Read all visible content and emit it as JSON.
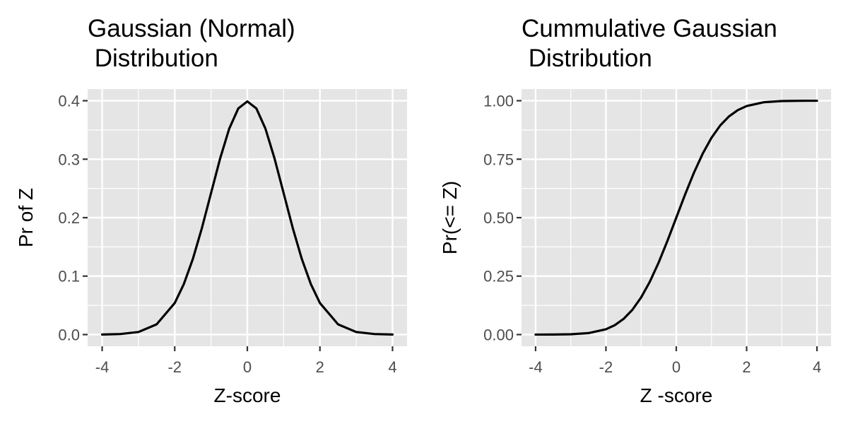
{
  "chart_data": [
    {
      "type": "line",
      "title_line1": "Gaussian (Normal)",
      "title_line2": " Distribution",
      "xlabel": "Z-score",
      "ylabel": "Pr of Z",
      "xlim": [
        -4.4,
        4.4
      ],
      "ylim": [
        -0.02,
        0.42
      ],
      "x_ticks": [
        -4,
        -2,
        0,
        2,
        4
      ],
      "x_tick_labels": [
        "-4",
        "-2",
        "0",
        "2",
        "4"
      ],
      "y_ticks": [
        0.0,
        0.1,
        0.2,
        0.3,
        0.4
      ],
      "y_tick_labels": [
        "0.0",
        "0.1",
        "0.2",
        "0.3",
        "0.4"
      ],
      "grid": true,
      "series": [
        {
          "x": [
            -4,
            -3.5,
            -3,
            -2.5,
            -2,
            -1.75,
            -1.5,
            -1.25,
            -1,
            -0.75,
            -0.5,
            -0.25,
            0,
            0.25,
            0.5,
            0.75,
            1,
            1.25,
            1.5,
            1.75,
            2,
            2.5,
            3,
            3.5,
            4
          ],
          "y": [
            0.0001,
            0.0009,
            0.0044,
            0.0175,
            0.054,
            0.0863,
            0.1295,
            0.1826,
            0.242,
            0.3011,
            0.3521,
            0.3867,
            0.3989,
            0.3867,
            0.3521,
            0.3011,
            0.242,
            0.1826,
            0.1295,
            0.0863,
            0.054,
            0.0175,
            0.0044,
            0.0009,
            0.0001
          ]
        }
      ]
    },
    {
      "type": "line",
      "title_line1": "Cummulative Gaussian",
      "title_line2": " Distribution",
      "xlabel": "Z -score",
      "ylabel": "Pr(<= Z)",
      "xlim": [
        -4.4,
        4.4
      ],
      "ylim": [
        -0.05,
        1.05
      ],
      "x_ticks": [
        -4,
        -2,
        0,
        2,
        4
      ],
      "x_tick_labels": [
        "-4",
        "-2",
        "0",
        "2",
        "4"
      ],
      "y_ticks": [
        0.0,
        0.25,
        0.5,
        0.75,
        1.0
      ],
      "y_tick_labels": [
        "0.00",
        "0.25",
        "0.50",
        "0.75",
        "1.00"
      ],
      "grid": true,
      "series": [
        {
          "x": [
            -4,
            -3.5,
            -3,
            -2.5,
            -2,
            -1.75,
            -1.5,
            -1.25,
            -1,
            -0.75,
            -0.5,
            -0.25,
            0,
            0.25,
            0.5,
            0.75,
            1,
            1.25,
            1.5,
            1.75,
            2,
            2.5,
            3,
            3.5,
            4
          ],
          "y": [
            0.0,
            0.0002,
            0.0013,
            0.0062,
            0.0228,
            0.0401,
            0.0668,
            0.1056,
            0.1587,
            0.2266,
            0.3085,
            0.4013,
            0.5,
            0.5987,
            0.6915,
            0.7734,
            0.8413,
            0.8944,
            0.9332,
            0.9599,
            0.9772,
            0.9938,
            0.9987,
            0.9998,
            1.0
          ]
        }
      ]
    }
  ]
}
